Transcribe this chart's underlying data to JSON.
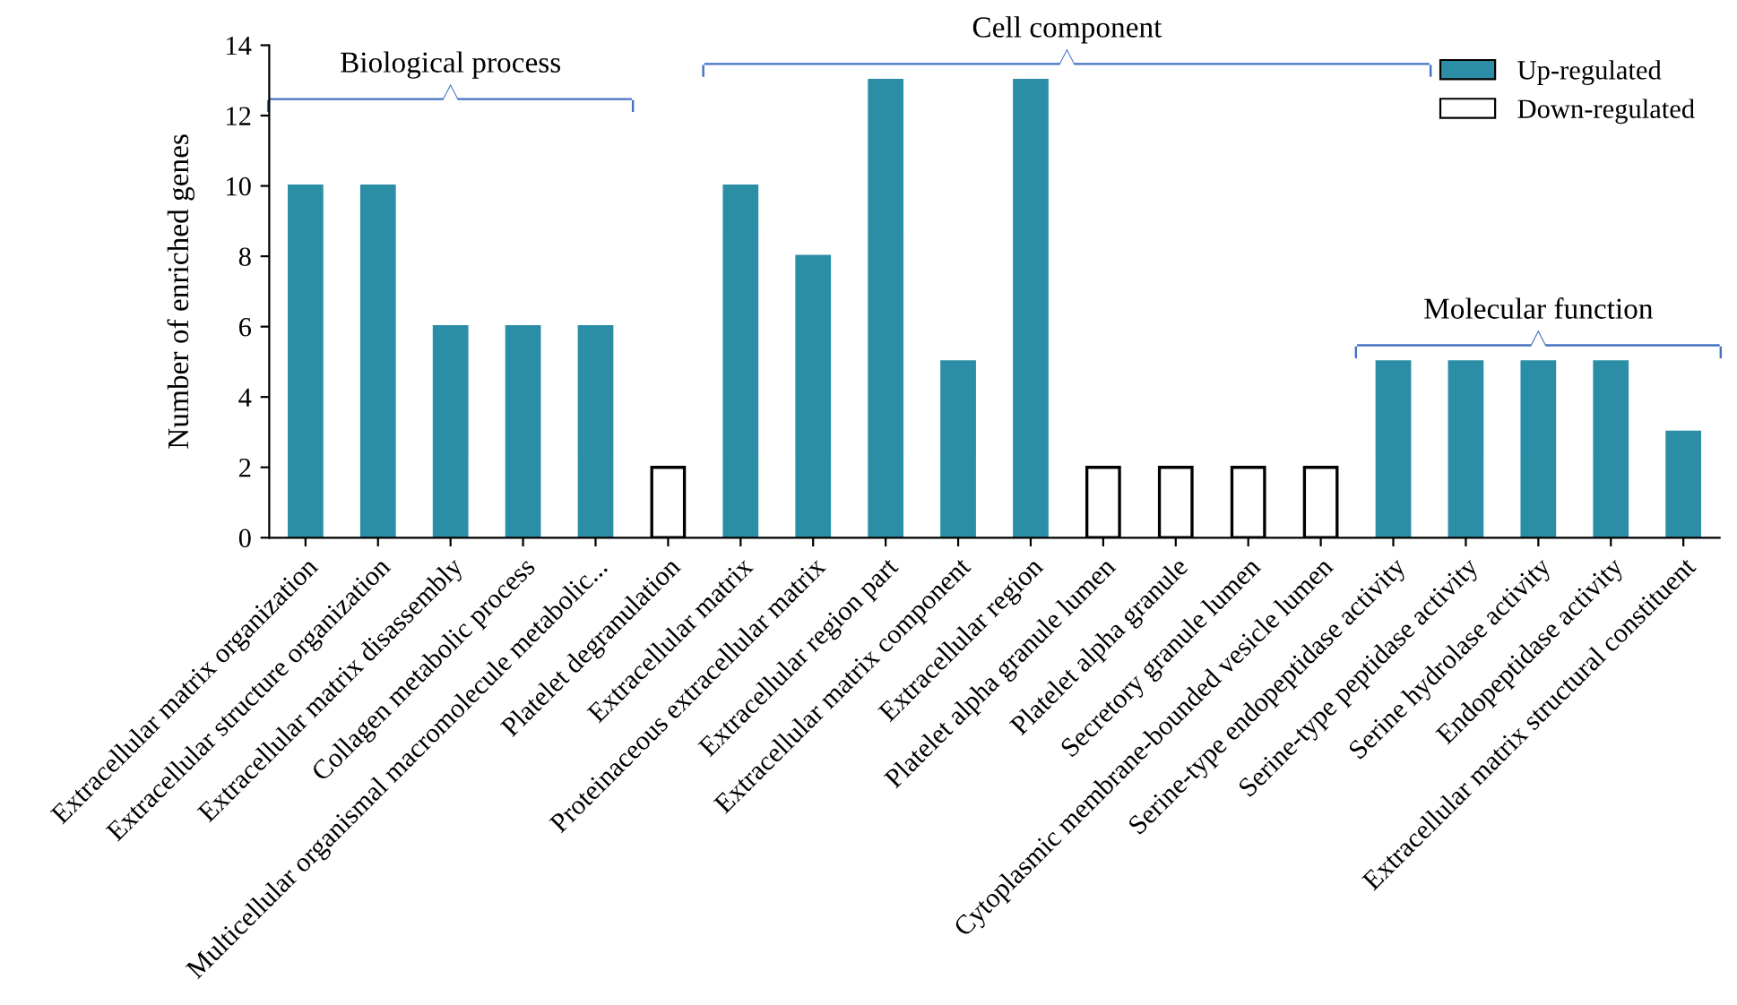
{
  "chart_data": {
    "type": "bar",
    "ylabel": "Number of enriched genes",
    "categories": [
      "Extracellular matrix organization",
      "Extracellular structure organization",
      "Extracellular matrix disassembly",
      "Collagen metabolic process",
      "Multicellular organismal macromolecule metabolic...",
      "Platelet degranulation",
      "Extracellular matrix",
      "Proteinaceous extracellular matrix",
      "Extracellular region part",
      "Extracellular matrix component",
      "Extracellular region",
      "Platelet alpha granule lumen",
      "Platelet alpha granule",
      "Secretory granule lumen",
      "Cytoplasmic membrane-bounded vesicle lumen",
      "Serine-type endopeptidase activity",
      "Serine-type peptidase activity",
      "Serine hydrolase activity",
      "Endopeptidase activity",
      "Extracellular matrix structural constituent"
    ],
    "series": [
      {
        "name": "Up-regulated",
        "color": "#2b8ea6",
        "values": [
          10,
          10,
          6,
          6,
          6,
          null,
          10,
          8,
          13,
          5,
          13,
          null,
          null,
          null,
          null,
          5,
          5,
          5,
          5,
          3
        ]
      },
      {
        "name": "Down-regulated",
        "color": "#ffffff",
        "values": [
          null,
          null,
          null,
          null,
          null,
          2,
          null,
          null,
          null,
          null,
          null,
          2,
          2,
          2,
          2,
          null,
          null,
          null,
          null,
          null
        ]
      }
    ],
    "ylim": [
      0,
      14
    ],
    "yticks": [
      0,
      2,
      4,
      6,
      8,
      10,
      12,
      14
    ],
    "grid": false,
    "legend": "top right",
    "annotations": [
      "Biological process",
      "Cell component",
      "Molecular function"
    ]
  }
}
